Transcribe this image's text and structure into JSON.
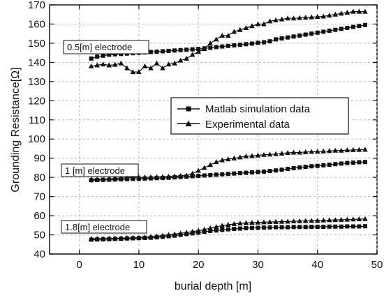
{
  "chart_data": {
    "type": "line",
    "xlabel": "burial depth [m]",
    "ylabel": "Grounding Resistance[Ω]",
    "xlim": [
      -5,
      50
    ],
    "ylim": [
      40,
      170
    ],
    "xticks": [
      0,
      10,
      20,
      30,
      40,
      50
    ],
    "yticks": [
      40,
      50,
      60,
      70,
      80,
      90,
      100,
      110,
      120,
      130,
      140,
      150,
      160,
      170
    ],
    "legend": {
      "placement": "right",
      "entries": [
        {
          "label": "Matlab simulation data",
          "marker": "square"
        },
        {
          "label": "Experimental data",
          "marker": "triangle"
        }
      ]
    },
    "annotations": [
      {
        "text": "0.5[m] electrode",
        "group": "0.5m"
      },
      {
        "text": "1 [m] electrode",
        "group": "1m"
      },
      {
        "text": "1.8[m] electrode",
        "group": "1.8m"
      }
    ],
    "x": [
      2,
      3,
      4,
      5,
      6,
      7,
      8,
      9,
      10,
      11,
      12,
      13,
      14,
      15,
      16,
      17,
      18,
      19,
      20,
      21,
      22,
      23,
      24,
      25,
      26,
      27,
      28,
      29,
      30,
      31,
      32,
      33,
      34,
      35,
      36,
      37,
      38,
      39,
      40,
      41,
      42,
      43,
      44,
      45,
      46,
      47,
      48
    ],
    "series": [
      {
        "group": "0.5m",
        "marker": "square",
        "values": [
          142,
          143,
          143.5,
          144,
          144.2,
          144.4,
          144.6,
          144.8,
          145,
          145.2,
          145.4,
          145.6,
          145.8,
          146,
          146.2,
          146.4,
          146.6,
          146.8,
          147,
          147.3,
          147.6,
          148,
          148.3,
          148.6,
          148.9,
          149.2,
          149.5,
          149.8,
          150.2,
          150.5,
          151,
          152,
          152.5,
          153,
          153.5,
          154,
          154.5,
          155,
          155.5,
          156,
          156.5,
          157,
          157.5,
          158,
          158.5,
          159,
          159.5
        ]
      },
      {
        "group": "0.5m",
        "marker": "triangle",
        "values": [
          138,
          138.5,
          139,
          138.5,
          138.8,
          139.5,
          137,
          135,
          135,
          138,
          137,
          139.5,
          137,
          139,
          139.5,
          141,
          142,
          144,
          145.5,
          147,
          150,
          152,
          154,
          154,
          156,
          157,
          158,
          159,
          160,
          160,
          161.5,
          162,
          162.5,
          163,
          163,
          163.2,
          163.4,
          163.6,
          163.8,
          164,
          164.5,
          165,
          165.5,
          166,
          166.5,
          166.5,
          166.5
        ]
      },
      {
        "group": "1m",
        "marker": "square",
        "values": [
          78.5,
          78.6,
          78.7,
          78.8,
          78.9,
          79,
          79.1,
          79.2,
          79.3,
          79.4,
          79.5,
          79.6,
          79.7,
          79.8,
          80,
          80.2,
          80.4,
          80.6,
          80.8,
          81,
          81.2,
          81.4,
          81.6,
          81.8,
          82,
          82.2,
          82.4,
          82.6,
          82.8,
          83,
          83.3,
          83.6,
          84,
          84.4,
          84.8,
          85.2,
          85.5,
          85.8,
          86,
          86.3,
          86.6,
          86.9,
          87.2,
          87.5,
          87.7,
          87.9,
          88
        ]
      },
      {
        "group": "1m",
        "marker": "triangle",
        "values": [
          79,
          79,
          79,
          79.2,
          79.4,
          79.6,
          79.8,
          80,
          80,
          80,
          80.1,
          80.2,
          80.3,
          80.4,
          80.6,
          80.8,
          81,
          82,
          83.5,
          85,
          86.5,
          88,
          89,
          89.5,
          90,
          90.5,
          91,
          91.2,
          91.5,
          91.8,
          92,
          92.2,
          92.5,
          92.8,
          93,
          93,
          93.2,
          93.4,
          93.5,
          93.6,
          93.8,
          94,
          94,
          94.2,
          94.3,
          94.4,
          94.5
        ]
      },
      {
        "group": "1.8m",
        "marker": "square",
        "values": [
          47.5,
          47.6,
          47.7,
          47.8,
          47.9,
          48,
          48.1,
          48.2,
          48.3,
          48.4,
          48.5,
          48.7,
          49,
          49.3,
          49.6,
          50,
          50.4,
          50.8,
          51.2,
          51.6,
          52,
          52.3,
          52.6,
          52.9,
          53.1,
          53.3,
          53.5,
          53.6,
          53.7,
          53.8,
          53.9,
          54,
          54,
          54,
          54.1,
          54.1,
          54.1,
          54.2,
          54.2,
          54.2,
          54.3,
          54.3,
          54.3,
          54.4,
          54.4,
          54.4,
          54.5
        ]
      },
      {
        "group": "1.8m",
        "marker": "triangle",
        "values": [
          48,
          48,
          48,
          48.1,
          48.2,
          48.3,
          48.4,
          48.5,
          48.6,
          48.8,
          49,
          49.3,
          49.6,
          50,
          50.4,
          50.8,
          51.2,
          51.7,
          52.2,
          52.8,
          53.5,
          54.2,
          54.8,
          55.3,
          55.7,
          56,
          56.2,
          56.4,
          56.5,
          56.6,
          56.7,
          56.8,
          56.9,
          57,
          57.1,
          57.2,
          57.3,
          57.4,
          57.5,
          57.6,
          57.7,
          57.8,
          57.9,
          58,
          58.1,
          58.2,
          58.3
        ]
      }
    ]
  }
}
